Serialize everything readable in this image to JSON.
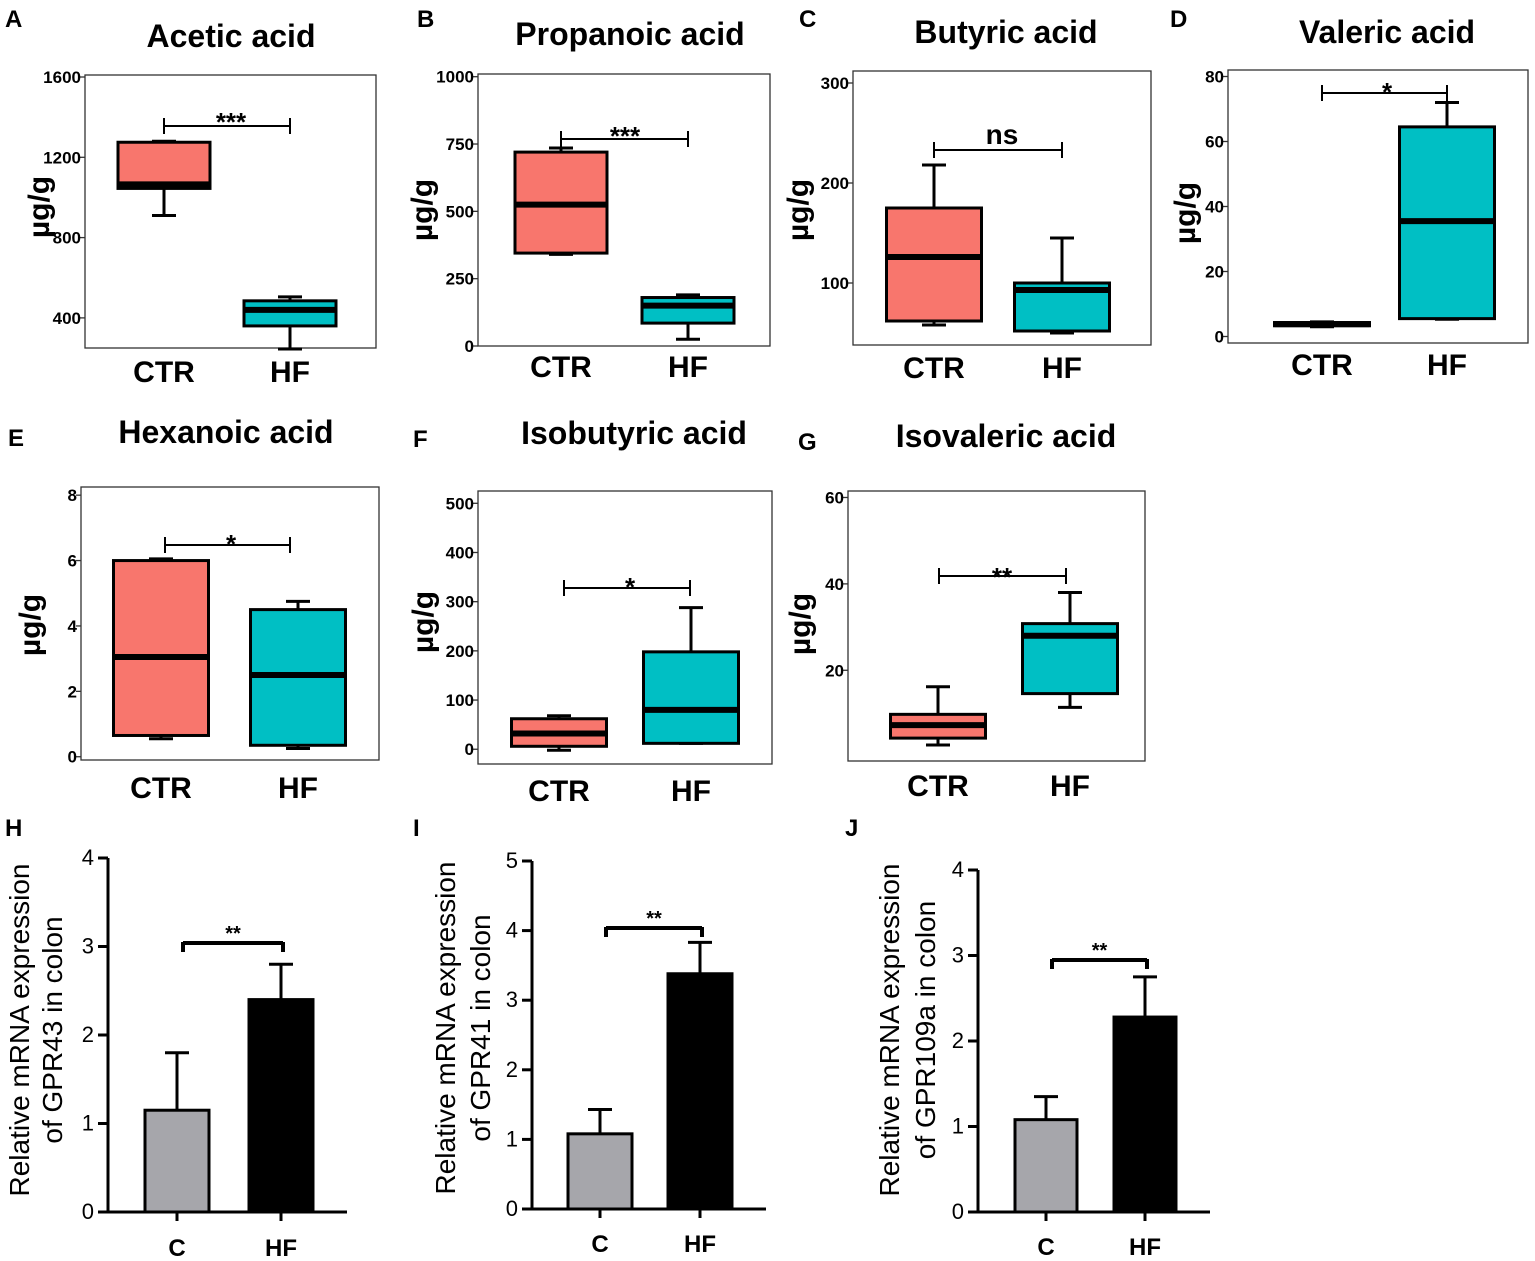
{
  "figure": {
    "colors": {
      "ctr": "#F8766D",
      "hf": "#00BFC4",
      "bar_c": "#A6A6AB",
      "bar_hf": "#000000"
    }
  },
  "chart_data": [
    {
      "id": "A",
      "panel_label": "A",
      "type": "box",
      "title": "Acetic acid",
      "ylabel": "µg/g",
      "ylim": [
        250,
        1610
      ],
      "yticks": [
        "400",
        "800",
        "1200",
        "1600"
      ],
      "categories": [
        "CTR",
        "HF"
      ],
      "significance": "***",
      "boxes": [
        {
          "group": "CTR",
          "min": 910,
          "q1": 1045,
          "median": 1065,
          "q3": 1275,
          "max": 1280
        },
        {
          "group": "HF",
          "min": 245,
          "q1": 360,
          "median": 440,
          "q3": 485,
          "max": 505
        }
      ]
    },
    {
      "id": "B",
      "panel_label": "B",
      "type": "box",
      "title": "Propanoic acid",
      "ylabel": "µg/g",
      "ylim": [
        0,
        1010
      ],
      "yticks": [
        "0",
        "250",
        "500",
        "750",
        "1000"
      ],
      "categories": [
        "CTR",
        "HF"
      ],
      "significance": "***",
      "boxes": [
        {
          "group": "CTR",
          "min": 340,
          "q1": 345,
          "median": 525,
          "q3": 720,
          "max": 735
        },
        {
          "group": "HF",
          "min": 25,
          "q1": 85,
          "median": 150,
          "q3": 180,
          "max": 190
        }
      ]
    },
    {
      "id": "C",
      "panel_label": "C",
      "type": "box",
      "title": "Butyric acid",
      "ylabel": "µg/g",
      "ylim": [
        38,
        312
      ],
      "yticks": [
        "100",
        "200",
        "300"
      ],
      "categories": [
        "CTR",
        "HF"
      ],
      "significance": "ns",
      "boxes": [
        {
          "group": "CTR",
          "min": 58,
          "q1": 62,
          "median": 126,
          "q3": 175,
          "max": 218
        },
        {
          "group": "HF",
          "min": 50,
          "q1": 52,
          "median": 93,
          "q3": 100,
          "max": 145
        }
      ]
    },
    {
      "id": "D",
      "panel_label": "D",
      "type": "box",
      "title": "Valeric acid",
      "ylabel": "µg/g",
      "ylim": [
        -2,
        82
      ],
      "yticks": [
        "0",
        "20",
        "40",
        "60",
        "80"
      ],
      "categories": [
        "CTR",
        "HF"
      ],
      "significance": "*",
      "boxes": [
        {
          "group": "CTR",
          "min": 3,
          "q1": 3.3,
          "median": 3.8,
          "q3": 4.3,
          "max": 4.5
        },
        {
          "group": "HF",
          "min": 5.3,
          "q1": 5.5,
          "median": 35.5,
          "q3": 64.5,
          "max": 72
        }
      ]
    },
    {
      "id": "E",
      "panel_label": "E",
      "type": "box",
      "title": "Hexanoic acid",
      "ylabel": "µg/g",
      "ylim": [
        -0.1,
        8.25
      ],
      "yticks": [
        "0",
        "2",
        "4",
        "6",
        "8"
      ],
      "categories": [
        "CTR",
        "HF"
      ],
      "significance": "*",
      "boxes": [
        {
          "group": "CTR",
          "min": 0.55,
          "q1": 0.65,
          "median": 3.05,
          "q3": 6.0,
          "max": 6.05
        },
        {
          "group": "HF",
          "min": 0.25,
          "q1": 0.35,
          "median": 2.5,
          "q3": 4.5,
          "max": 4.75
        }
      ]
    },
    {
      "id": "F",
      "panel_label": "F",
      "type": "box",
      "title": "Isobutyric acid",
      "ylabel": "µg/g",
      "ylim": [
        -30,
        525
      ],
      "yticks": [
        "0",
        "100",
        "200",
        "300",
        "400",
        "500"
      ],
      "categories": [
        "CTR",
        "HF"
      ],
      "significance": "*",
      "boxes": [
        {
          "group": "CTR",
          "min": -2,
          "q1": 6,
          "median": 32,
          "q3": 62,
          "max": 68
        },
        {
          "group": "HF",
          "min": 12,
          "q1": 12,
          "median": 80,
          "q3": 198,
          "max": 288
        }
      ]
    },
    {
      "id": "G",
      "panel_label": "G",
      "type": "box",
      "title": "Isovaleric acid",
      "ylabel": "µg/g",
      "ylim": [
        -1,
        61.5
      ],
      "yticks": [
        "20",
        "40",
        "60"
      ],
      "categories": [
        "CTR",
        "HF"
      ],
      "significance": "**",
      "boxes": [
        {
          "group": "CTR",
          "min": 2.7,
          "q1": 4.3,
          "median": 7.3,
          "q3": 9.8,
          "max": 16.2
        },
        {
          "group": "HF",
          "min": 11.4,
          "q1": 14.6,
          "median": 28,
          "q3": 30.8,
          "max": 38
        }
      ]
    },
    {
      "id": "H",
      "panel_label": "H",
      "type": "bar",
      "ylabel_lines": [
        "Relative mRNA expression",
        "of GPR43 in colon"
      ],
      "ylim": [
        0,
        4
      ],
      "yticks": [
        "0",
        "1",
        "2",
        "3",
        "4"
      ],
      "categories": [
        "C",
        "HF"
      ],
      "significance": "**",
      "bars": [
        {
          "group": "C",
          "value": 1.15,
          "error": 0.65
        },
        {
          "group": "HF",
          "value": 2.4,
          "error": 0.4
        }
      ]
    },
    {
      "id": "I",
      "panel_label": "I",
      "type": "bar",
      "ylabel_lines": [
        "Relative mRNA expression",
        "of GPR41 in colon"
      ],
      "ylim": [
        0,
        5
      ],
      "yticks": [
        "0",
        "1",
        "2",
        "3",
        "4",
        "5"
      ],
      "categories": [
        "C",
        "HF"
      ],
      "significance": "**",
      "bars": [
        {
          "group": "C",
          "value": 1.08,
          "error": 0.35
        },
        {
          "group": "HF",
          "value": 3.38,
          "error": 0.45
        }
      ]
    },
    {
      "id": "J",
      "panel_label": "J",
      "type": "bar",
      "ylabel_lines": [
        "Relative mRNA expression",
        "of GPR109a in colon"
      ],
      "ylim": [
        0,
        4
      ],
      "yticks": [
        "0",
        "1",
        "2",
        "3",
        "4"
      ],
      "categories": [
        "C",
        "HF"
      ],
      "significance": "**",
      "bars": [
        {
          "group": "C",
          "value": 1.08,
          "error": 0.27
        },
        {
          "group": "HF",
          "value": 2.28,
          "error": 0.47
        }
      ]
    }
  ]
}
